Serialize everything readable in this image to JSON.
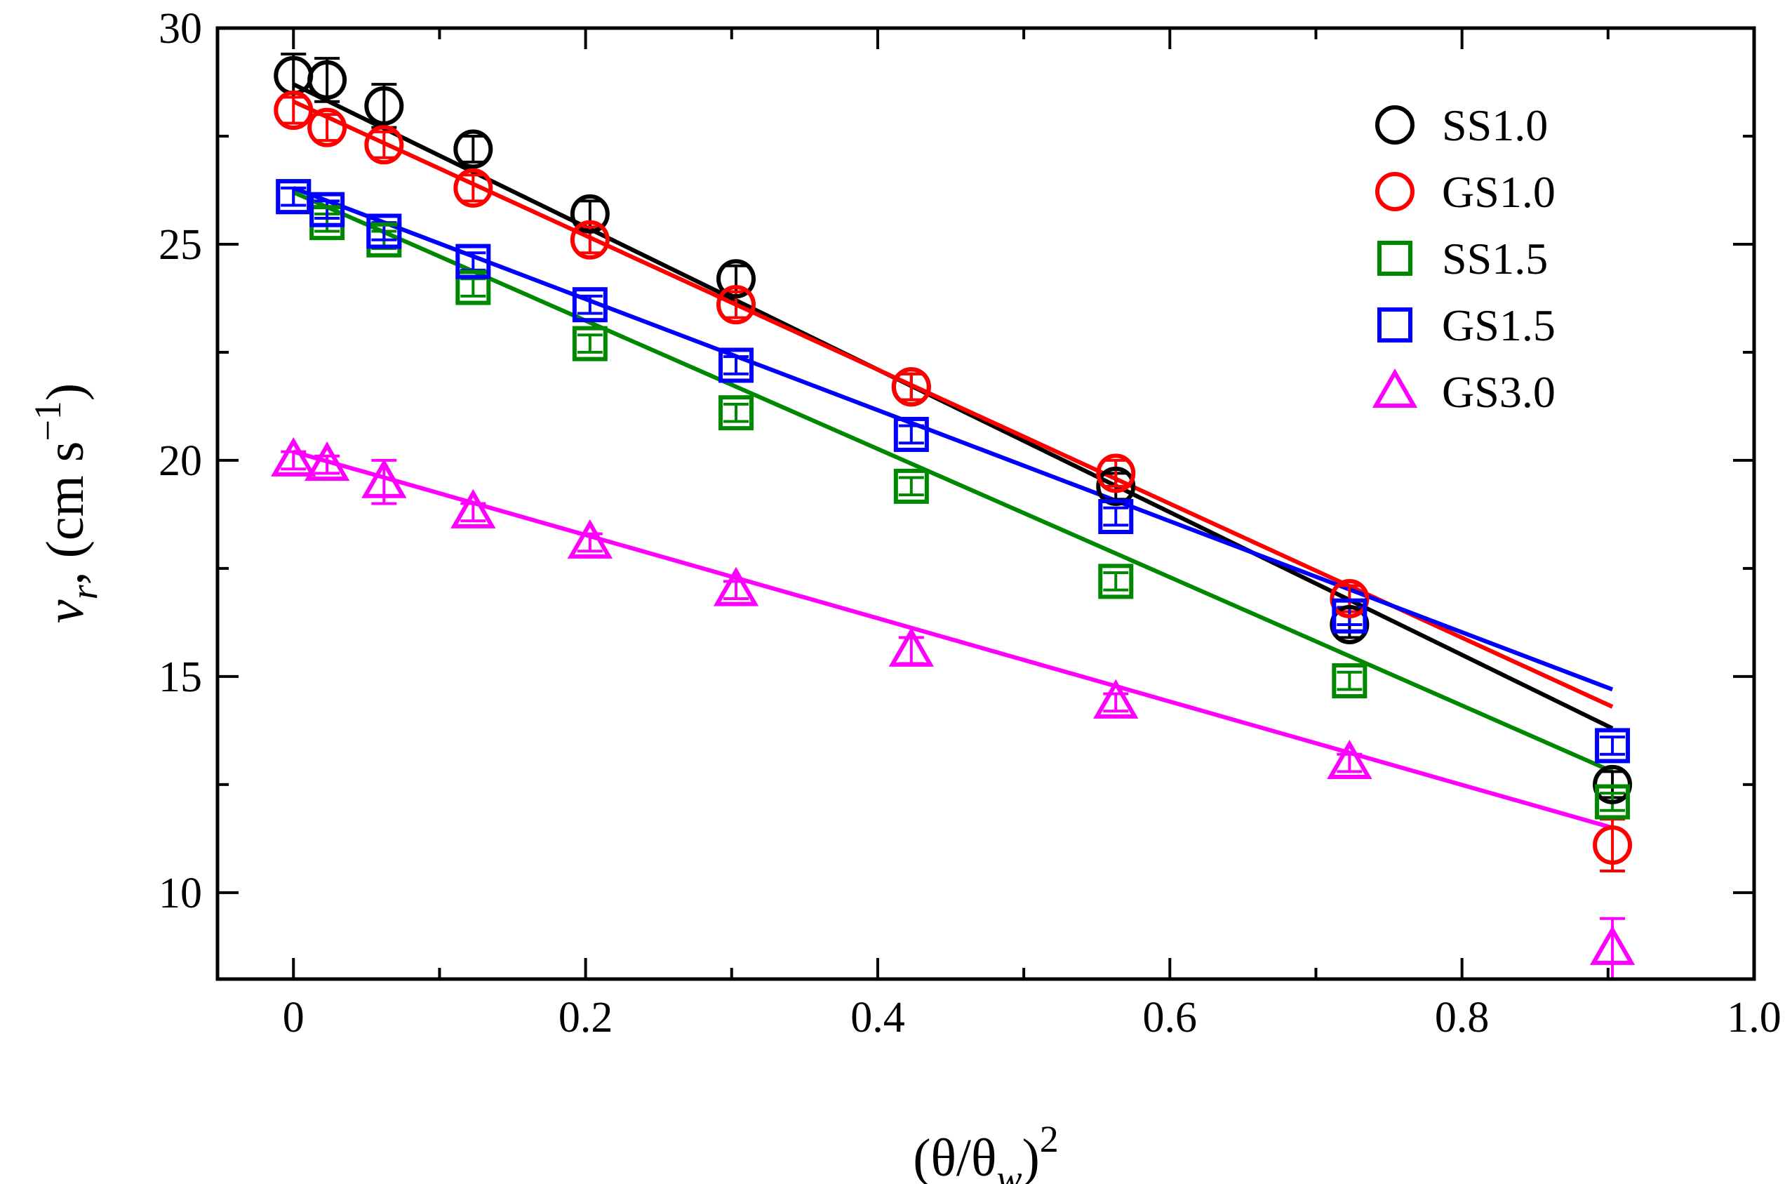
{
  "chart_data": {
    "type": "scatter",
    "title": "",
    "xlabel": "(θ/θw)²",
    "xlabel_parts": {
      "open": "(θ/θ",
      "sub": "w",
      "close": ")",
      "sup": "2"
    },
    "ylabel": "vr (cm s⁻¹)",
    "ylabel_parts": {
      "var": "v",
      "sub": "r",
      "comma": ",",
      "unit": " (cm s",
      "sup": "−1",
      "close": ")"
    },
    "xlim": [
      -0.052,
      1.0
    ],
    "ylim": [
      8.0,
      30.0
    ],
    "xticks": [
      0,
      0.2,
      0.4,
      0.6,
      0.8,
      1.0
    ],
    "xtick_labels": [
      "0",
      "0.2",
      "0.4",
      "0.6",
      "0.8",
      "1.0"
    ],
    "xminor": [
      0.1,
      0.3,
      0.5,
      0.7,
      0.9
    ],
    "yticks": [
      10,
      15,
      20,
      25,
      30
    ],
    "ytick_labels": [
      "10",
      "15",
      "20",
      "25",
      "30"
    ],
    "yminor": [
      12.5,
      17.5,
      22.5,
      27.5
    ],
    "legend_position": "top-right",
    "grid": false,
    "x": [
      0.0,
      0.023,
      0.062,
      0.123,
      0.203,
      0.303,
      0.423,
      0.563,
      0.723,
      0.903
    ],
    "series": [
      {
        "name": "SS1.0",
        "color": "#000000",
        "marker": "circle",
        "values": [
          28.9,
          28.8,
          28.2,
          27.2,
          25.7,
          24.2,
          21.7,
          19.4,
          16.2,
          12.5
        ],
        "errors": [
          0.5,
          0.5,
          0.5,
          0.3,
          0.3,
          0.3,
          0.3,
          0.3,
          0.3,
          0.3
        ],
        "fit": {
          "x0": 0.0,
          "y0": 28.7,
          "x1": 0.903,
          "y1": 13.8
        }
      },
      {
        "name": "GS1.0",
        "color": "#ff0000",
        "marker": "circle",
        "values": [
          28.1,
          27.7,
          27.3,
          26.3,
          25.1,
          23.6,
          21.7,
          19.7,
          16.8,
          11.1
        ],
        "errors": [
          0.3,
          0.3,
          0.3,
          0.3,
          0.3,
          0.3,
          0.3,
          0.3,
          0.3,
          0.6
        ],
        "fit": {
          "x0": 0.0,
          "y0": 28.3,
          "x1": 0.903,
          "y1": 14.3
        }
      },
      {
        "name": "SS1.5",
        "color": "#008800",
        "marker": "square",
        "values": [
          26.1,
          25.5,
          25.1,
          24.0,
          22.7,
          21.1,
          19.4,
          17.2,
          14.9,
          12.1
        ],
        "errors": [
          0.2,
          0.2,
          0.2,
          0.2,
          0.2,
          0.2,
          0.2,
          0.2,
          0.2,
          0.2
        ],
        "fit": {
          "x0": 0.0,
          "y0": 26.2,
          "x1": 0.903,
          "y1": 12.8
        }
      },
      {
        "name": "GS1.5",
        "color": "#0000ff",
        "marker": "square",
        "values": [
          26.1,
          25.8,
          25.3,
          24.6,
          23.6,
          22.2,
          20.6,
          18.7,
          16.4,
          13.4
        ],
        "errors": [
          0.2,
          0.2,
          0.2,
          0.2,
          0.2,
          0.2,
          0.2,
          0.2,
          0.2,
          0.2
        ],
        "fit": {
          "x0": 0.0,
          "y0": 26.3,
          "x1": 0.903,
          "y1": 14.7
        }
      },
      {
        "name": "GS3.0",
        "color": "#ff00ff",
        "marker": "triangle",
        "values": [
          20.0,
          19.9,
          19.5,
          18.8,
          18.1,
          17.0,
          15.6,
          14.4,
          13.0,
          8.7
        ],
        "errors": [
          0.2,
          0.2,
          0.5,
          0.2,
          0.2,
          0.2,
          0.3,
          0.2,
          0.2,
          0.7
        ],
        "fit": {
          "x0": 0.0,
          "y0": 20.2,
          "x1": 0.903,
          "y1": 11.5
        }
      }
    ]
  }
}
